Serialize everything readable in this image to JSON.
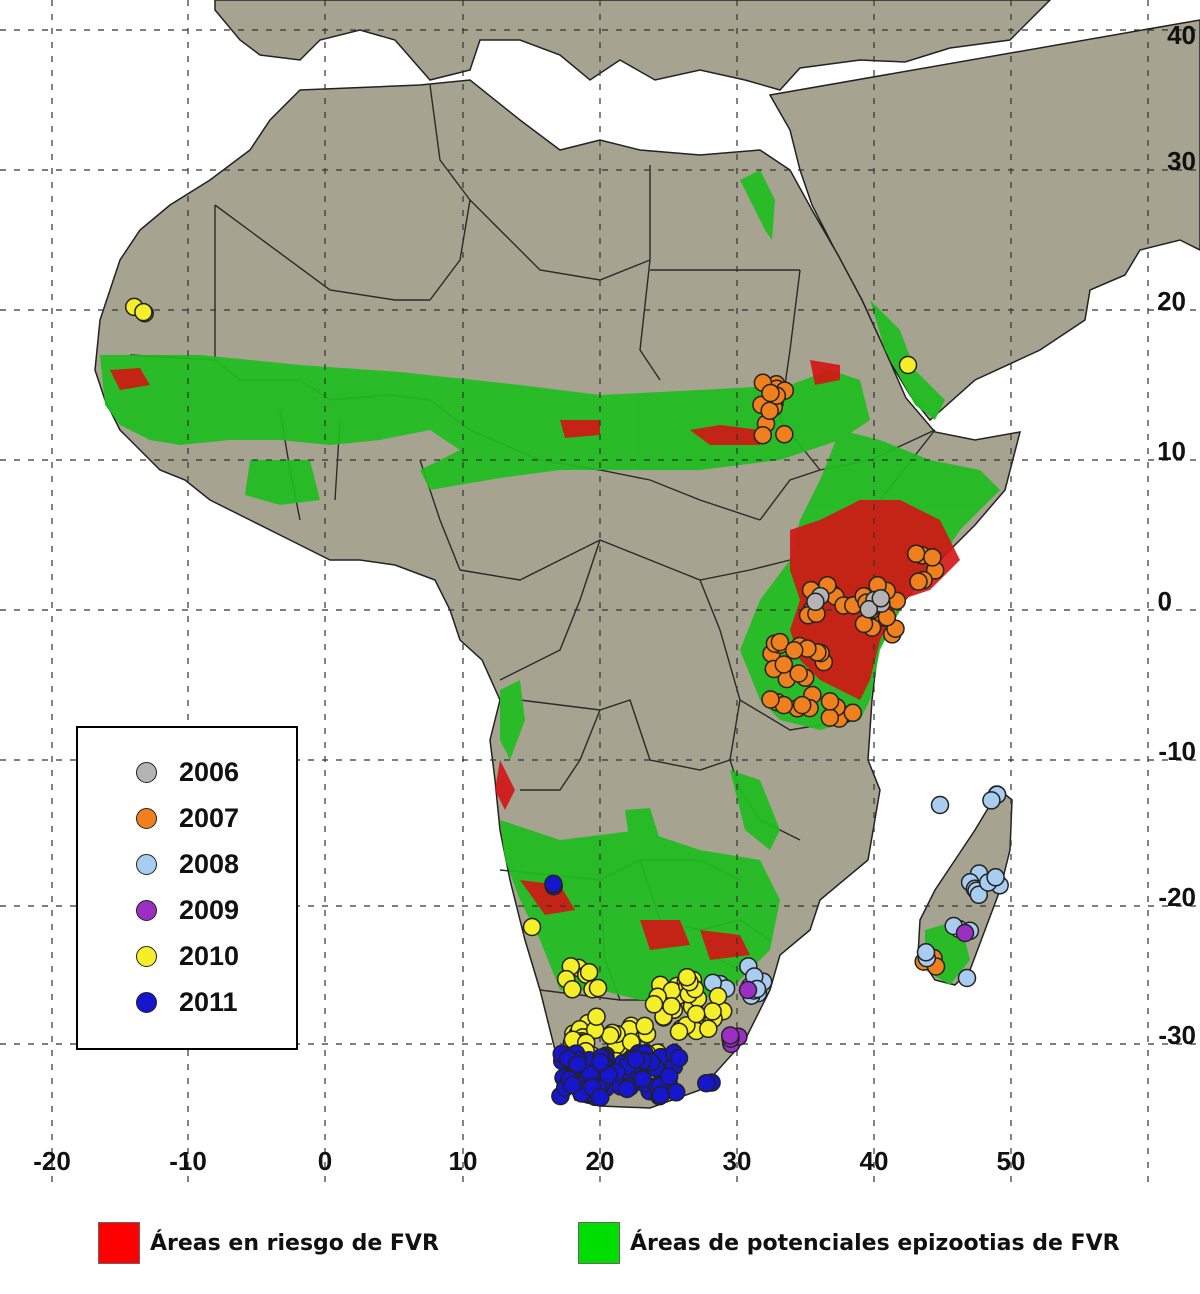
{
  "map": {
    "lon_ticks": [
      "-20",
      "-10",
      "0",
      "10",
      "20",
      "30",
      "40",
      "50"
    ],
    "lat_ticks": [
      "40",
      "30",
      "20",
      "10",
      "0",
      "-10",
      "-20",
      "-30"
    ],
    "colors": {
      "land": "#a7a391",
      "sea": "#ffffff",
      "border": "#2a2a2a",
      "grid": "#333333",
      "risk": "#d41414",
      "epizootic": "#1fbd1f"
    }
  },
  "legend": {
    "items": [
      {
        "label": "2006",
        "color": "#b4b4b4"
      },
      {
        "label": "2007",
        "color": "#f0801e"
      },
      {
        "label": "2008",
        "color": "#a8cdf0"
      },
      {
        "label": "2009",
        "color": "#9b2fc4"
      },
      {
        "label": "2010",
        "color": "#f5ef2a"
      },
      {
        "label": "2011",
        "color": "#1616cc"
      }
    ]
  },
  "key": {
    "risk_label": "Áreas en riesgo de FVR",
    "risk_color": "#ff0000",
    "epizootic_label": "Áreas de potenciales epizootias de FVR",
    "epizootic_color": "#00dd00"
  }
}
